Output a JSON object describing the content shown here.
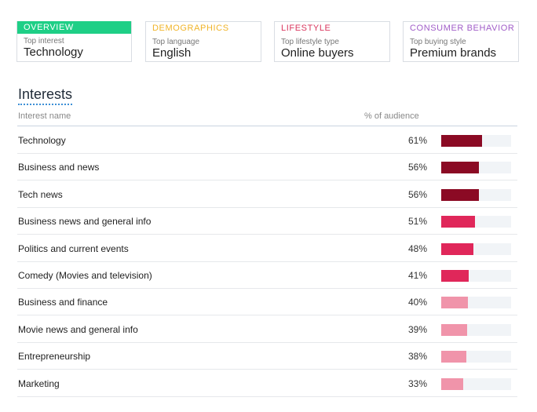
{
  "tabs": [
    {
      "category": "OVERVIEW",
      "category_color": "#ffffff",
      "sublabel": "Top interest",
      "value": "Technology",
      "active": true
    },
    {
      "category": "DEMOGRAPHICS",
      "category_color": "#f0b429",
      "sublabel": "Top language",
      "value": "English",
      "active": false
    },
    {
      "category": "LIFESTYLE",
      "category_color": "#d9365e",
      "sublabel": "Top lifestyle type",
      "value": "Online buyers",
      "active": false
    },
    {
      "category": "CONSUMER BEHAVIOR",
      "category_color": "#a05dc8",
      "sublabel": "Top buying style",
      "value": "Premium brands",
      "active": false
    }
  ],
  "section": {
    "title": "Interests"
  },
  "table": {
    "col_name": "Interest name",
    "col_pct": "% of audience",
    "rows": [
      {
        "name": "Technology",
        "pct_label": "61%",
        "pct": 61,
        "color": "#8b0a24"
      },
      {
        "name": "Business and news",
        "pct_label": "56%",
        "pct": 56,
        "color": "#8b0a24"
      },
      {
        "name": "Tech news",
        "pct_label": "56%",
        "pct": 56,
        "color": "#8b0a24"
      },
      {
        "name": "Business news and general info",
        "pct_label": "51%",
        "pct": 51,
        "color": "#e0275a"
      },
      {
        "name": "Politics and current events",
        "pct_label": "48%",
        "pct": 48,
        "color": "#e0275a"
      },
      {
        "name": "Comedy (Movies and television)",
        "pct_label": "41%",
        "pct": 41,
        "color": "#e0275a"
      },
      {
        "name": "Business and finance",
        "pct_label": "40%",
        "pct": 40,
        "color": "#f094aa"
      },
      {
        "name": "Movie news and general info",
        "pct_label": "39%",
        "pct": 39,
        "color": "#f094aa"
      },
      {
        "name": "Entrepreneurship",
        "pct_label": "38%",
        "pct": 38,
        "color": "#f094aa"
      },
      {
        "name": "Marketing",
        "pct_label": "33%",
        "pct": 33,
        "color": "#f094aa"
      }
    ]
  }
}
